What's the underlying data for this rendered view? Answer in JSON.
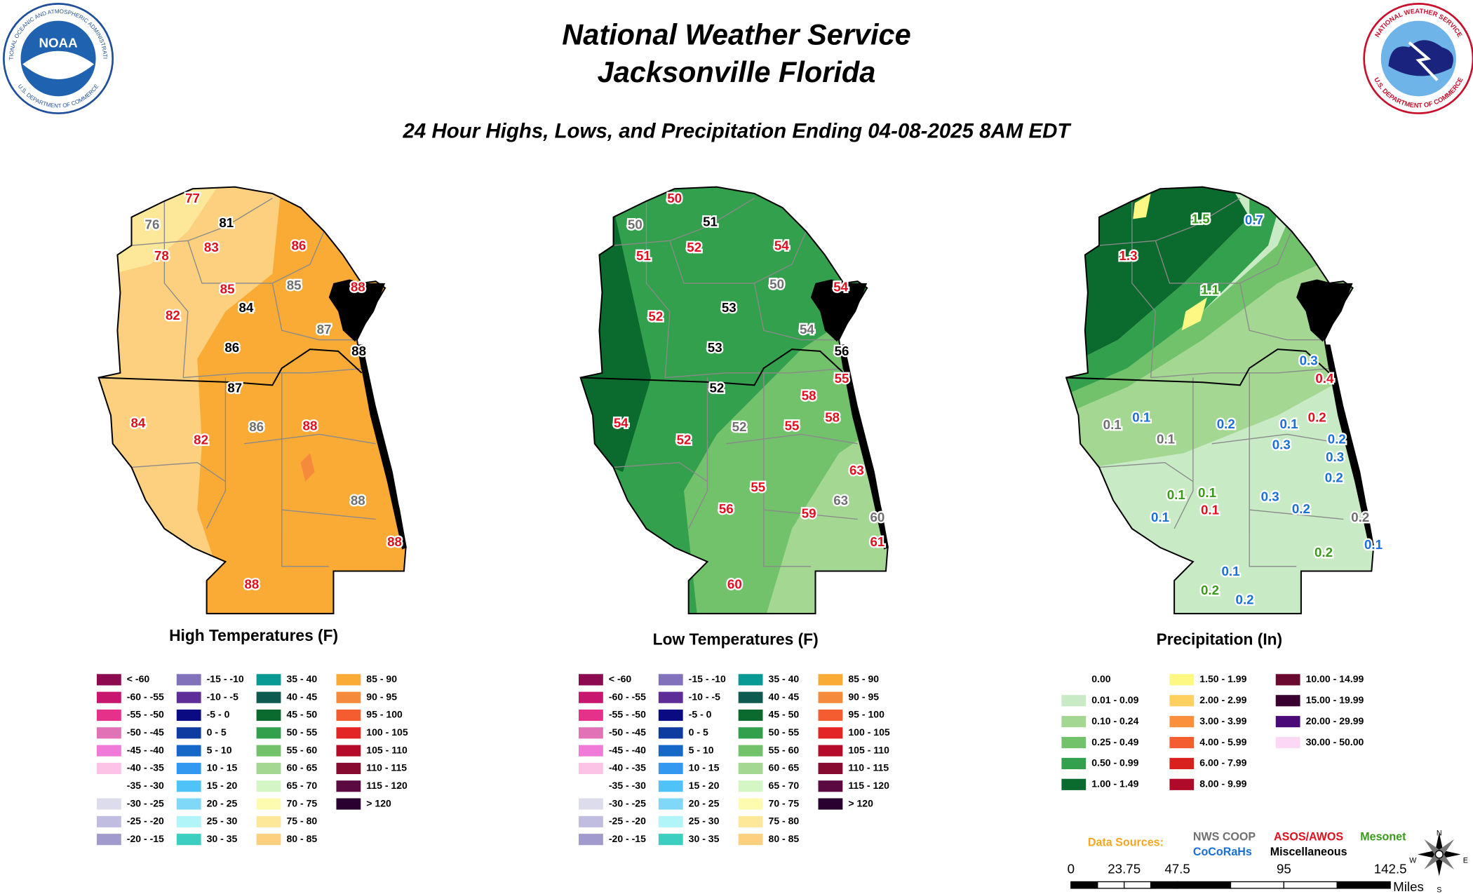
{
  "header": {
    "title_line1": "National Weather Service",
    "title_line2": "Jacksonville Florida",
    "subtitle": "24 Hour Highs, Lows, and Precipitation Ending 04-08-2025 8AM EDT",
    "noaa_logo": {
      "abbr": "NOAA",
      "ring_top": "NATIONAL OCEANIC AND ATMOSPHERIC ADMINISTRATION",
      "ring_bottom": "U.S. DEPARTMENT OF COMMERCE"
    },
    "nws_logo": {
      "ring_top": "NATIONAL WEATHER SERVICE",
      "ring_bottom": "U.S. DEPARTMENT OF COMMERCE"
    }
  },
  "maps": [
    {
      "title": "High Temperatures (F)",
      "stations": [
        {
          "value": 77,
          "color": "#e0101e"
        },
        {
          "value": 76,
          "color": "#707070"
        },
        {
          "value": 81,
          "color": "#000000"
        },
        {
          "value": 78,
          "color": "#e0101e"
        },
        {
          "value": 83,
          "color": "#e0101e"
        },
        {
          "value": 86,
          "color": "#e0101e"
        },
        {
          "value": 85,
          "color": "#e0101e"
        },
        {
          "value": 85,
          "color": "#707070"
        },
        {
          "value": 88,
          "color": "#e0101e"
        },
        {
          "value": 82,
          "color": "#e0101e"
        },
        {
          "value": 84,
          "color": "#000000"
        },
        {
          "value": 87,
          "color": "#707070"
        },
        {
          "value": 86,
          "color": "#000000"
        },
        {
          "value": 88,
          "color": "#000000"
        },
        {
          "value": 87,
          "color": "#000000"
        },
        {
          "value": 84,
          "color": "#e0101e"
        },
        {
          "value": 82,
          "color": "#e0101e"
        },
        {
          "value": 86,
          "color": "#707070"
        },
        {
          "value": 88,
          "color": "#e0101e"
        },
        {
          "value": 88,
          "color": "#707070"
        },
        {
          "value": 88,
          "color": "#e0101e"
        },
        {
          "value": 88,
          "color": "#e0101e"
        }
      ],
      "legend": {
        "columns": [
          [
            {
              "label": "< -60",
              "color": "#8b0a50"
            },
            {
              "label": "-60 - -55",
              "color": "#c8156e"
            },
            {
              "label": "-55 - -50",
              "color": "#e6318a"
            },
            {
              "label": "-50 - -45",
              "color": "#e272b6"
            },
            {
              "label": "-45 - -40",
              "color": "#f07ad8"
            },
            {
              "label": "-40 - -35",
              "color": "#fdc3e6"
            },
            {
              "label": "-35 - -30",
              "color": "#ffffff"
            },
            {
              "label": "-30 - -25",
              "color": "#dcdcec"
            },
            {
              "label": "-25 - -20",
              "color": "#c0bde0"
            },
            {
              "label": "-20 - -15",
              "color": "#a09bcc"
            }
          ],
          [
            {
              "label": "-15 - -10",
              "color": "#8272bb"
            },
            {
              "label": "-10 - -5",
              "color": "#5e2d98"
            },
            {
              "label": "-5 - 0",
              "color": "#0a0a82"
            },
            {
              "label": "0 - 5",
              "color": "#0e3ca0"
            },
            {
              "label": "5 - 10",
              "color": "#1567c8"
            },
            {
              "label": "10 - 15",
              "color": "#3399f0"
            },
            {
              "label": "15 - 20",
              "color": "#4fc3f7"
            },
            {
              "label": "20 - 25",
              "color": "#7fd8f8"
            },
            {
              "label": "25 - 30",
              "color": "#b2f5f8"
            },
            {
              "label": "30 - 35",
              "color": "#3ccfbf"
            }
          ],
          [
            {
              "label": "35 - 40",
              "color": "#0a9a96"
            },
            {
              "label": "40 - 45",
              "color": "#0c5a50"
            },
            {
              "label": "45 - 50",
              "color": "#0b6a2d"
            },
            {
              "label": "50 - 55",
              "color": "#33a04d"
            },
            {
              "label": "55 - 60",
              "color": "#72c16b"
            },
            {
              "label": "60 - 65",
              "color": "#a3d792"
            },
            {
              "label": "65 - 70",
              "color": "#d4f6c4"
            },
            {
              "label": "70 - 75",
              "color": "#fdfbb0"
            },
            {
              "label": "75 - 80",
              "color": "#fde89a"
            },
            {
              "label": "80 - 85",
              "color": "#fdd07f"
            }
          ],
          [
            {
              "label": "85 - 90",
              "color": "#f9ab35"
            },
            {
              "label": "90 - 95",
              "color": "#f68a3c"
            },
            {
              "label": "95 - 100",
              "color": "#f45d30"
            },
            {
              "label": "100 - 105",
              "color": "#e42525"
            },
            {
              "label": "105 - 110",
              "color": "#b50a2a"
            },
            {
              "label": "110 - 115",
              "color": "#870a30"
            },
            {
              "label": "115 - 120",
              "color": "#5a0a40"
            },
            {
              "label": "> 120",
              "color": "#2a0030"
            }
          ]
        ]
      }
    },
    {
      "title": "Low Temperatures (F)",
      "stations": [
        {
          "value": 50,
          "color": "#e0101e"
        },
        {
          "value": 50,
          "color": "#707070"
        },
        {
          "value": 51,
          "color": "#000000"
        },
        {
          "value": 51,
          "color": "#e0101e"
        },
        {
          "value": 52,
          "color": "#e0101e"
        },
        {
          "value": 54,
          "color": "#e0101e"
        },
        {
          "value": 50,
          "color": "#707070"
        },
        {
          "value": 54,
          "color": "#e0101e"
        },
        {
          "value": 52,
          "color": "#e0101e"
        },
        {
          "value": 53,
          "color": "#000000"
        },
        {
          "value": 54,
          "color": "#707070"
        },
        {
          "value": 53,
          "color": "#000000"
        },
        {
          "value": 56,
          "color": "#000000"
        },
        {
          "value": 52,
          "color": "#000000"
        },
        {
          "value": 55,
          "color": "#e0101e"
        },
        {
          "value": 58,
          "color": "#e0101e"
        },
        {
          "value": 58,
          "color": "#e0101e"
        },
        {
          "value": 54,
          "color": "#e0101e"
        },
        {
          "value": 52,
          "color": "#707070"
        },
        {
          "value": 55,
          "color": "#e0101e"
        },
        {
          "value": 52,
          "color": "#e0101e"
        },
        {
          "value": 63,
          "color": "#e0101e"
        },
        {
          "value": 55,
          "color": "#e0101e"
        },
        {
          "value": 63,
          "color": "#707070"
        },
        {
          "value": 56,
          "color": "#e0101e"
        },
        {
          "value": 59,
          "color": "#e0101e"
        },
        {
          "value": 60,
          "color": "#707070"
        },
        {
          "value": 61,
          "color": "#e0101e"
        },
        {
          "value": 60,
          "color": "#e0101e"
        }
      ],
      "legend": {
        "columns": [
          [
            {
              "label": "< -60",
              "color": "#8b0a50"
            },
            {
              "label": "-60 - -55",
              "color": "#c8156e"
            },
            {
              "label": "-55 - -50",
              "color": "#e6318a"
            },
            {
              "label": "-50 - -45",
              "color": "#e272b6"
            },
            {
              "label": "-45 - -40",
              "color": "#f07ad8"
            },
            {
              "label": "-40 - -35",
              "color": "#fdc3e6"
            },
            {
              "label": "-35 - -30",
              "color": "#ffffff"
            },
            {
              "label": "-30 - -25",
              "color": "#dcdcec"
            },
            {
              "label": "-25 - -20",
              "color": "#c0bde0"
            },
            {
              "label": "-20 - -15",
              "color": "#a09bcc"
            }
          ],
          [
            {
              "label": "-15 - -10",
              "color": "#8272bb"
            },
            {
              "label": "-10 - -5",
              "color": "#5e2d98"
            },
            {
              "label": "-5 - 0",
              "color": "#0a0a82"
            },
            {
              "label": "0 - 5",
              "color": "#0e3ca0"
            },
            {
              "label": "5 - 10",
              "color": "#1567c8"
            },
            {
              "label": "10 - 15",
              "color": "#3399f0"
            },
            {
              "label": "15 - 20",
              "color": "#4fc3f7"
            },
            {
              "label": "20 - 25",
              "color": "#7fd8f8"
            },
            {
              "label": "25 - 30",
              "color": "#b2f5f8"
            },
            {
              "label": "30 - 35",
              "color": "#3ccfbf"
            }
          ],
          [
            {
              "label": "35 - 40",
              "color": "#0a9a96"
            },
            {
              "label": "40 - 45",
              "color": "#0c5a50"
            },
            {
              "label": "45 - 50",
              "color": "#0b6a2d"
            },
            {
              "label": "50 - 55",
              "color": "#33a04d"
            },
            {
              "label": "55 - 60",
              "color": "#72c16b"
            },
            {
              "label": "60 - 65",
              "color": "#a3d792"
            },
            {
              "label": "65 - 70",
              "color": "#d4f6c4"
            },
            {
              "label": "70 - 75",
              "color": "#fdfbb0"
            },
            {
              "label": "75 - 80",
              "color": "#fde89a"
            },
            {
              "label": "80 - 85",
              "color": "#fdd07f"
            }
          ],
          [
            {
              "label": "85 - 90",
              "color": "#f9ab35"
            },
            {
              "label": "90 - 95",
              "color": "#f68a3c"
            },
            {
              "label": "95 - 100",
              "color": "#f45d30"
            },
            {
              "label": "100 - 105",
              "color": "#e42525"
            },
            {
              "label": "105 - 110",
              "color": "#b50a2a"
            },
            {
              "label": "110 - 115",
              "color": "#870a30"
            },
            {
              "label": "115 - 120",
              "color": "#5a0a40"
            },
            {
              "label": "> 120",
              "color": "#2a0030"
            }
          ]
        ]
      }
    },
    {
      "title": "Precipitation (In)",
      "stations": [
        {
          "value": 1.5,
          "color": "#3a9a1a"
        },
        {
          "value": 0.7,
          "color": "#1a6fd8"
        },
        {
          "value": 1.3,
          "color": "#e0101e"
        },
        {
          "value": 1.1,
          "color": "#3a9a1a"
        },
        {
          "value": 0.3,
          "color": "#1a6fd8"
        },
        {
          "value": 0.4,
          "color": "#e0101e"
        },
        {
          "value": 0.1,
          "color": "#707070"
        },
        {
          "value": 0.1,
          "color": "#1a6fd8"
        },
        {
          "value": 0.1,
          "color": "#707070"
        },
        {
          "value": 0.2,
          "color": "#1a6fd8"
        },
        {
          "value": 0.1,
          "color": "#1a6fd8"
        },
        {
          "value": 0.2,
          "color": "#e0101e"
        },
        {
          "value": 0.3,
          "color": "#1a6fd8"
        },
        {
          "value": 0.2,
          "color": "#1a6fd8"
        },
        {
          "value": 0.3,
          "color": "#1a6fd8"
        },
        {
          "value": 0.2,
          "color": "#1a6fd8"
        },
        {
          "value": 0.1,
          "color": "#3a9a1a"
        },
        {
          "value": 0.1,
          "color": "#3a9a1a"
        },
        {
          "value": 0.3,
          "color": "#1a6fd8"
        },
        {
          "value": 0.1,
          "color": "#e0101e"
        },
        {
          "value": 0.2,
          "color": "#1a6fd8"
        },
        {
          "value": 0.1,
          "color": "#1a6fd8"
        },
        {
          "value": 0.2,
          "color": "#707070"
        },
        {
          "value": 0.1,
          "color": "#1a6fd8"
        },
        {
          "value": 0.2,
          "color": "#3a9a1a"
        },
        {
          "value": 0.1,
          "color": "#1a6fd8"
        },
        {
          "value": 0.2,
          "color": "#3a9a1a"
        },
        {
          "value": 0.2,
          "color": "#1a6fd8"
        }
      ],
      "legend": {
        "columns": [
          [
            {
              "label": "0.00",
              "color": "#ffffff"
            },
            {
              "label": "0.01 - 0.09",
              "color": "#c8eac4"
            },
            {
              "label": "0.10 - 0.24",
              "color": "#a3d792"
            },
            {
              "label": "0.25 - 0.49",
              "color": "#72c16b"
            },
            {
              "label": "0.50 - 0.99",
              "color": "#33a04d"
            },
            {
              "label": "1.00 - 1.49",
              "color": "#0b6a2d"
            }
          ],
          [
            {
              "label": "1.50 - 1.99",
              "color": "#fdf883"
            },
            {
              "label": "2.00 - 2.99",
              "color": "#fdd060"
            },
            {
              "label": "3.00 - 3.99",
              "color": "#fa8f3c"
            },
            {
              "label": "4.00 - 5.99",
              "color": "#f45d30"
            },
            {
              "label": "6.00 - 7.99",
              "color": "#d8201f"
            },
            {
              "label": "8.00 - 9.99",
              "color": "#b00a2a"
            }
          ],
          [
            {
              "label": "10.00 - 14.99",
              "color": "#6a0a30"
            },
            {
              "label": "15.00 - 19.99",
              "color": "#3a0030"
            },
            {
              "label": "20.00 - 29.99",
              "color": "#4a0a78"
            },
            {
              "label": "30.00 - 50.00",
              "color": "#fcd8f6"
            }
          ]
        ]
      }
    }
  ],
  "data_sources": {
    "label": "Data Sources:",
    "label_color": "#f5a623",
    "items": [
      {
        "text": "NWS COOP",
        "color": "#707070"
      },
      {
        "text": "ASOS/AWOS",
        "color": "#e0101e"
      },
      {
        "text": "Mesonet",
        "color": "#3a9a1a"
      },
      {
        "text": "CoCoRaHs",
        "color": "#1a6fd8"
      },
      {
        "text": "Miscellaneous",
        "color": "#000000"
      }
    ]
  },
  "scale": {
    "ticks": [
      0,
      23.75,
      47.5,
      95,
      142.5
    ],
    "unit": "Miles"
  },
  "compass": {
    "n": "N",
    "e": "E",
    "s": "S",
    "w": "W"
  }
}
